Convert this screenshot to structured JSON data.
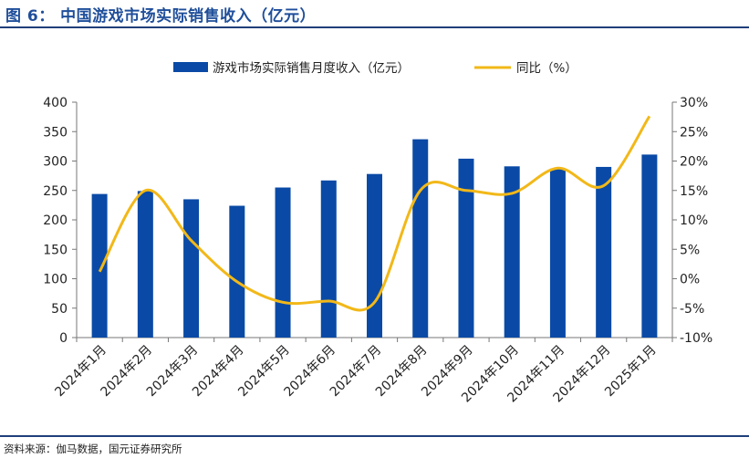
{
  "figure": {
    "title": "图 6：  中国游戏市场实际销售收入（亿元）",
    "source": "资料来源：伽马数据，国元证券研究所"
  },
  "colors": {
    "bar": "#0a4aa6",
    "line": "#f2b818",
    "title": "#1f4e9a"
  },
  "chart_data": {
    "type": "bar",
    "title": "中国游戏市场实际销售收入（亿元）",
    "categories": [
      "2024年1月",
      "2024年2月",
      "2024年3月",
      "2024年4月",
      "2024年5月",
      "2024年6月",
      "2024年7月",
      "2024年8月",
      "2024年9月",
      "2024年10月",
      "2024年11月",
      "2024年12月",
      "2025年1月"
    ],
    "series": [
      {
        "name": "游戏市场实际销售月度收入（亿元）",
        "type": "bar",
        "axis": "left",
        "values": [
          244,
          249,
          235,
          224,
          255,
          267,
          278,
          337,
          304,
          291,
          287,
          290,
          311
        ]
      },
      {
        "name": "同比（%）",
        "type": "line",
        "axis": "right",
        "values": [
          1.2,
          15.0,
          6.5,
          -0.5,
          -4.0,
          -3.8,
          -4.0,
          15.0,
          15.0,
          14.5,
          18.8,
          15.8,
          27.6
        ]
      }
    ],
    "yleft": {
      "ylim": [
        0,
        400
      ],
      "ticks": [
        0,
        50,
        100,
        150,
        200,
        250,
        300,
        350,
        400
      ]
    },
    "yright": {
      "ylim": [
        -10,
        30
      ],
      "ticks": [
        -10,
        -5,
        0,
        5,
        10,
        15,
        20,
        25,
        30
      ],
      "tick_suffix": "%"
    },
    "legend": "top",
    "grid": false
  }
}
